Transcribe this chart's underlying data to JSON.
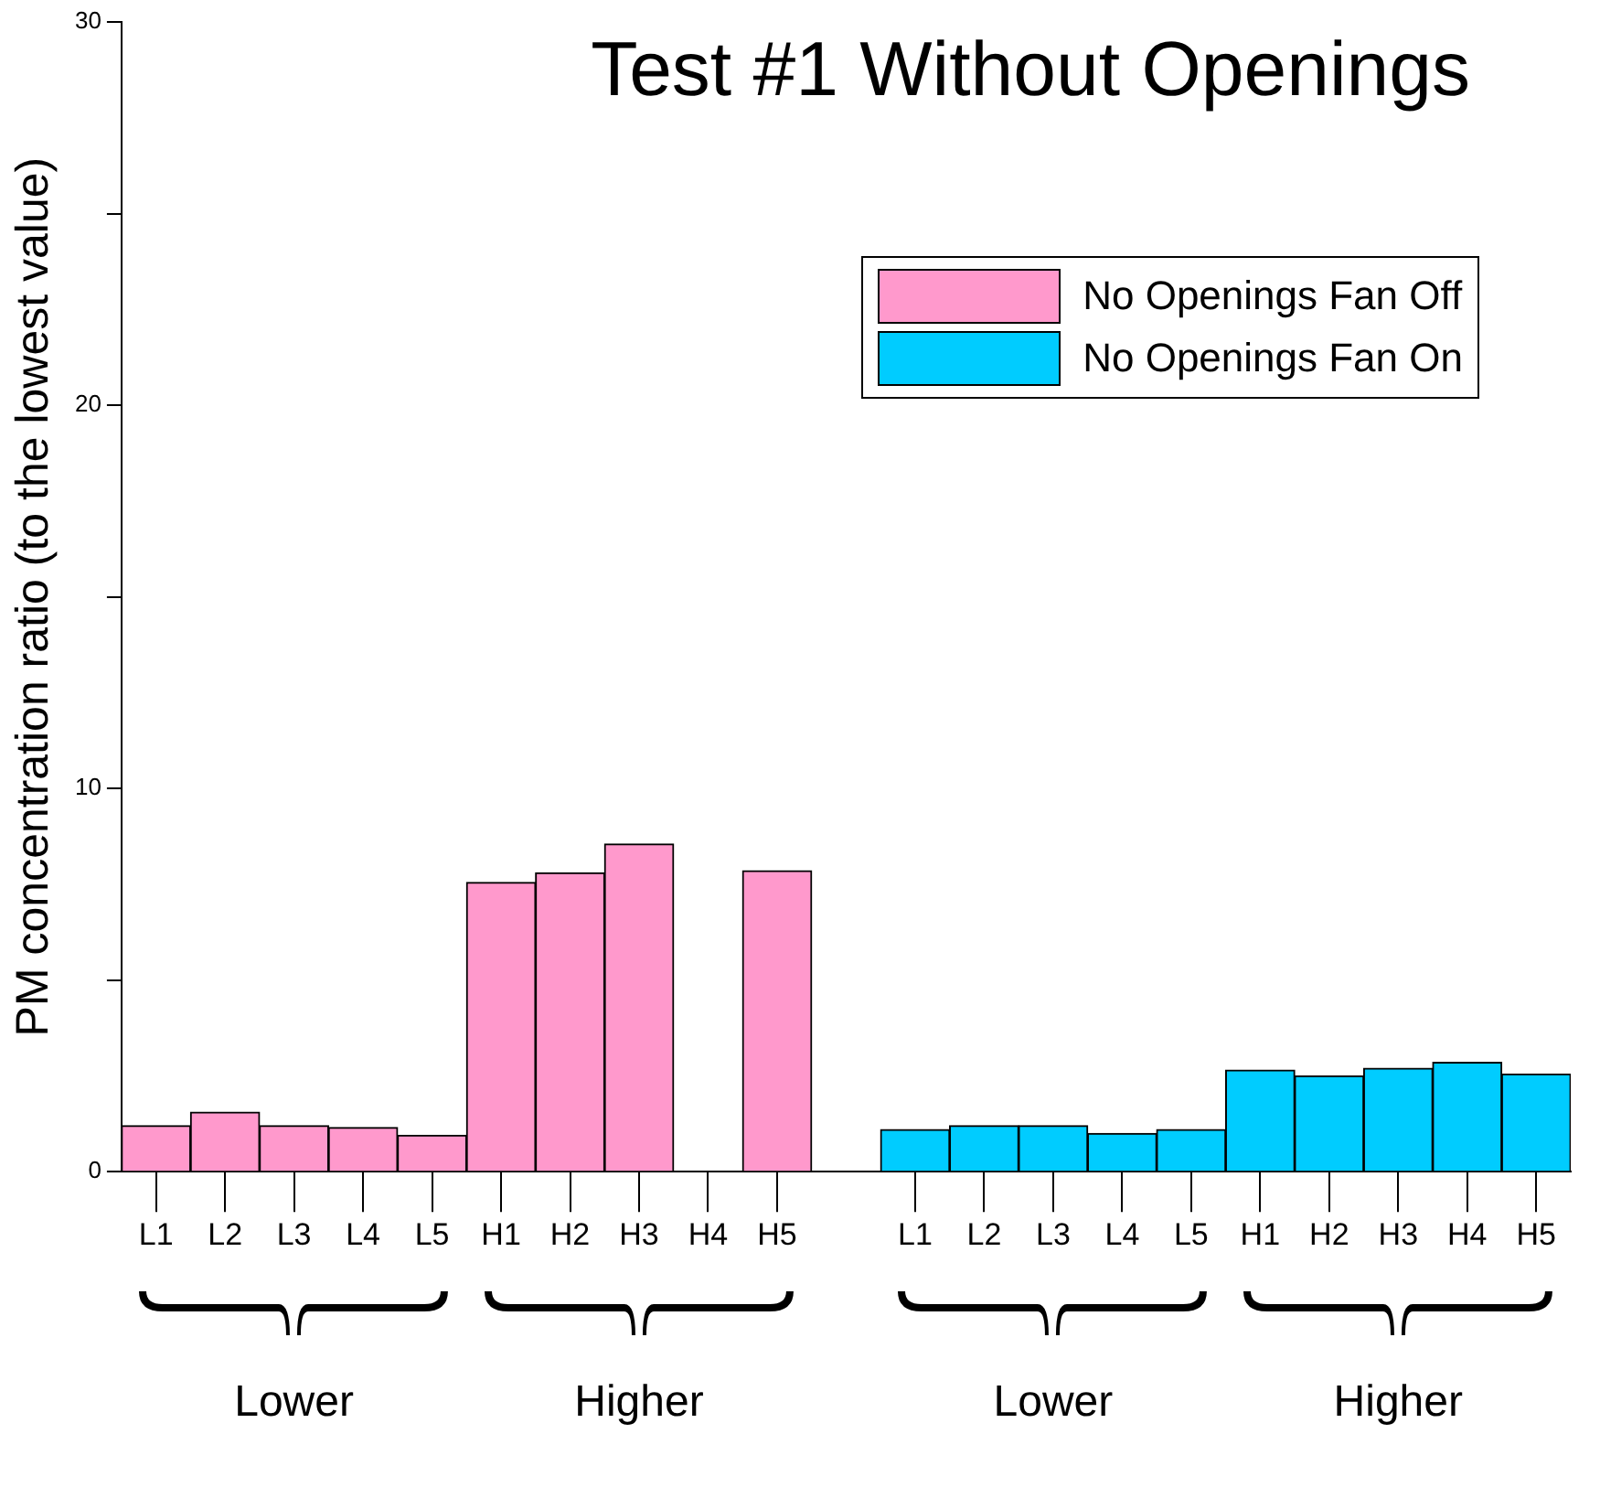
{
  "chart_data": {
    "type": "bar",
    "title": "Test #1 Without Openings",
    "ylabel": "PM concentration ratio (to the lowest value)",
    "categories": [
      "L1",
      "L2",
      "L3",
      "L4",
      "L5",
      "H1",
      "H2",
      "H3",
      "H4",
      "H5",
      null,
      "L1",
      "L2",
      "L3",
      "L4",
      "L5",
      "H1",
      "H2",
      "H3",
      "H4",
      "H5"
    ],
    "series": [
      {
        "name": "No Openings Fan Off",
        "color": "#ff99cc",
        "values": [
          1.2,
          1.55,
          1.2,
          1.15,
          0.95,
          7.55,
          7.8,
          8.55,
          null,
          7.85,
          null,
          null,
          null,
          null,
          null,
          null,
          null,
          null,
          null,
          null,
          null
        ]
      },
      {
        "name": "No Openings Fan On",
        "color": "#00ccff",
        "values": [
          null,
          null,
          null,
          null,
          null,
          null,
          null,
          null,
          null,
          null,
          null,
          1.1,
          1.2,
          1.2,
          1.0,
          1.1,
          2.65,
          2.5,
          2.7,
          2.85,
          2.55
        ]
      }
    ],
    "ylim": [
      0,
      30
    ],
    "yticks": [
      0,
      {
        "value": 5,
        "label": null
      },
      10,
      {
        "value": 15,
        "label": null
      },
      20,
      {
        "value": 25,
        "label": null
      },
      30
    ],
    "grid": false,
    "legend": "top right",
    "annotations": [
      "Lower",
      "Higher",
      "Lower",
      "Higher"
    ]
  }
}
